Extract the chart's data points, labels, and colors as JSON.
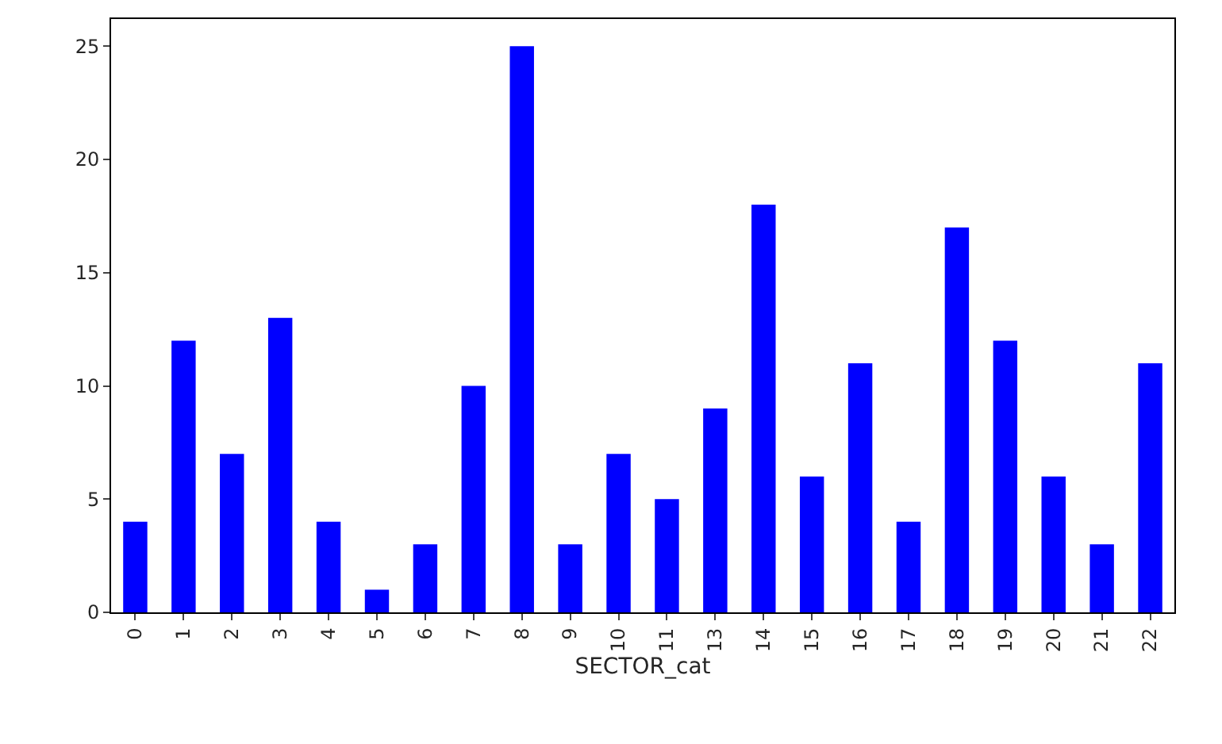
{
  "chart_data": {
    "type": "bar",
    "xlabel": "SECTOR_cat",
    "categories": [
      "0",
      "1",
      "2",
      "3",
      "4",
      "5",
      "6",
      "7",
      "8",
      "9",
      "10",
      "11",
      "13",
      "14",
      "15",
      "16",
      "17",
      "18",
      "19",
      "20",
      "21",
      "22"
    ],
    "values": [
      4,
      12,
      7,
      13,
      4,
      1,
      3,
      10,
      25,
      3,
      7,
      5,
      9,
      18,
      6,
      11,
      4,
      17,
      12,
      6,
      3,
      11
    ],
    "color": "#0000ff",
    "ylim": [
      0,
      26.2
    ],
    "yticks": [
      0,
      5,
      10,
      15,
      20,
      25
    ]
  }
}
